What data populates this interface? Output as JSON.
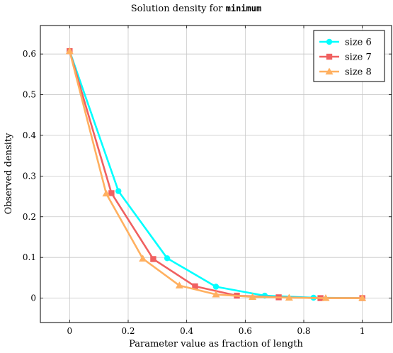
{
  "chart_data": {
    "type": "line",
    "title": "Solution density for",
    "title_code": "minimum",
    "xlabel": "Parameter value as fraction of length",
    "ylabel": "Observed density",
    "xlim": [
      -0.1,
      1.1
    ],
    "ylim": [
      -0.06,
      0.67
    ],
    "xticks": [
      0,
      0.2,
      0.4,
      0.6,
      0.8,
      1
    ],
    "xtick_labels": [
      "0",
      "0.2",
      "0.4",
      "0.6",
      "0.8",
      "1"
    ],
    "yticks": [
      0,
      0.1,
      0.2,
      0.3,
      0.4,
      0.5,
      0.6
    ],
    "ytick_labels": [
      "0",
      "0.1",
      "0.2",
      "0.3",
      "0.4",
      "0.5",
      "0.6"
    ],
    "grid": true,
    "legend_position": "top-right",
    "series": [
      {
        "name": "size 6",
        "color": "#00ffff",
        "marker": "circle",
        "x": [
          0,
          0.1667,
          0.3333,
          0.5,
          0.6667,
          0.8333,
          1.0
        ],
        "y": [
          0.607,
          0.263,
          0.098,
          0.028,
          0.006,
          0.001,
          0.0
        ]
      },
      {
        "name": "size 7",
        "color": "#f06060",
        "marker": "square",
        "x": [
          0,
          0.1429,
          0.2857,
          0.4286,
          0.5714,
          0.7143,
          0.8571,
          1.0
        ],
        "y": [
          0.607,
          0.258,
          0.096,
          0.029,
          0.006,
          0.002,
          0.0,
          0.0
        ]
      },
      {
        "name": "size 8",
        "color": "#ffb060",
        "marker": "triangle",
        "x": [
          0,
          0.125,
          0.25,
          0.375,
          0.5,
          0.625,
          0.75,
          0.875,
          1.0
        ],
        "y": [
          0.607,
          0.257,
          0.097,
          0.031,
          0.009,
          0.003,
          0.001,
          0.0,
          0.0
        ]
      }
    ]
  }
}
